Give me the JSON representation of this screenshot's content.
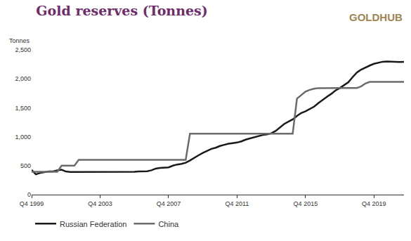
{
  "chart_data": {
    "type": "line",
    "title": "Gold reserves (Tonnes)",
    "logo": "GOLDHUB",
    "y_label": "Tonnes",
    "categories": [
      "Q4 1999",
      null,
      null,
      null,
      null,
      null,
      null,
      null,
      null,
      null,
      null,
      null,
      null,
      null,
      null,
      null,
      "Q4 2003",
      null,
      null,
      null,
      null,
      null,
      null,
      null,
      null,
      null,
      null,
      null,
      null,
      null,
      null,
      null,
      "Q4 2007",
      null,
      null,
      null,
      null,
      null,
      null,
      null,
      null,
      null,
      null,
      null,
      null,
      null,
      null,
      null,
      "Q4 2011",
      null,
      null,
      null,
      null,
      null,
      null,
      null,
      null,
      null,
      null,
      null,
      null,
      null,
      null,
      null,
      "Q4 2015",
      null,
      null,
      null,
      null,
      null,
      null,
      null,
      null,
      null,
      null,
      null,
      null,
      null,
      null,
      null,
      "Q4 2019",
      null,
      null,
      null,
      null,
      null,
      null,
      null
    ],
    "series": [
      {
        "name": "Russian Federation",
        "color": "#1a1a1a",
        "values": [
          425,
          350,
          375,
          390,
          400,
          400,
          420,
          430,
          400,
          390,
          390,
          390,
          390,
          390,
          395,
          390,
          390,
          390,
          395,
          390,
          390,
          390,
          390,
          390,
          395,
          400,
          400,
          405,
          420,
          450,
          460,
          465,
          470,
          500,
          520,
          530,
          550,
          590,
          640,
          680,
          720,
          760,
          790,
          810,
          840,
          860,
          880,
          890,
          900,
          920,
          950,
          970,
          990,
          1010,
          1030,
          1040,
          1060,
          1100,
          1160,
          1220,
          1260,
          1300,
          1360,
          1410,
          1440,
          1480,
          1520,
          1580,
          1640,
          1690,
          1740,
          1800,
          1840,
          1890,
          1940,
          2030,
          2110,
          2160,
          2200,
          2230,
          2260,
          2280,
          2295,
          2300,
          2300,
          2295,
          2290,
          2295
        ]
      },
      {
        "name": "China",
        "color": "#6b6b6b",
        "values": [
          395,
          395,
          395,
          395,
          395,
          395,
          395,
          500,
          500,
          500,
          500,
          600,
          600,
          600,
          600,
          600,
          600,
          600,
          600,
          600,
          600,
          600,
          600,
          600,
          600,
          600,
          600,
          600,
          600,
          600,
          600,
          600,
          600,
          600,
          600,
          600,
          600,
          1054,
          1054,
          1054,
          1054,
          1054,
          1054,
          1054,
          1054,
          1054,
          1054,
          1054,
          1054,
          1054,
          1054,
          1054,
          1054,
          1054,
          1054,
          1054,
          1054,
          1054,
          1054,
          1054,
          1054,
          1054,
          1658,
          1720,
          1780,
          1810,
          1830,
          1840,
          1842,
          1842,
          1842,
          1842,
          1842,
          1842,
          1842,
          1842,
          1842,
          1870,
          1920,
          1948,
          1948,
          1948,
          1948,
          1948,
          1948,
          1948,
          1948,
          1948
        ]
      }
    ],
    "ylim": [
      0,
      2500
    ],
    "yticks": [
      0,
      500,
      {
        "value": 1000,
        "label": "1,000"
      },
      {
        "value": 1500,
        "label": "1,500"
      },
      {
        "value": 2000,
        "label": "2,000"
      },
      {
        "value": 2500,
        "label": "2,500"
      }
    ],
    "grid": false,
    "legend": "bottom left"
  }
}
